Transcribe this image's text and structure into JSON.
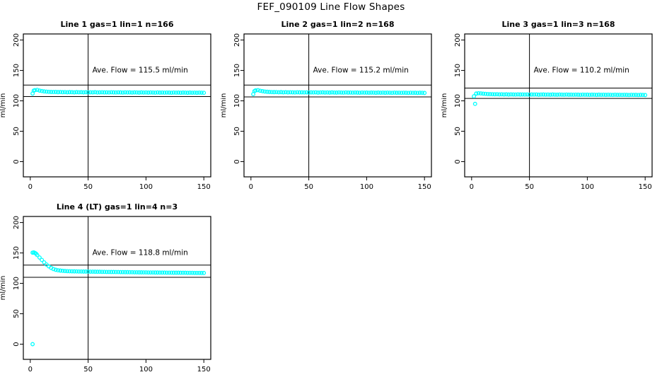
{
  "title": "FEF_090109  Line Flow Shapes",
  "colors": {
    "points": "#00FFFF",
    "axis": "#000000",
    "background": "#FFFFFF"
  },
  "axes": {
    "xlabel": "",
    "ylabel": "ml/min",
    "x_ticks": [
      0,
      50,
      100,
      150
    ],
    "y_ticks": [
      0,
      50,
      100,
      150,
      200
    ],
    "xlim": [
      0,
      150
    ],
    "ylim": [
      0,
      200
    ],
    "grid": false
  },
  "chart_data": [
    {
      "type": "scatter",
      "title": "Line 1 gas=1 lin=1 n=166",
      "annotation": "Ave. Flow =  115.5  ml/min",
      "ave_flow_ml_min": 115.5,
      "n": 166,
      "ref_line_v_x": 50,
      "ref_lines_h": [
        126,
        107
      ],
      "x_start": 2,
      "x_step": 2,
      "y": [
        112.0,
        117.6,
        118.0,
        116.9,
        116.1,
        115.5,
        115.1,
        114.8,
        114.6,
        114.5,
        114.6,
        114.3,
        114.5,
        114.2,
        114.4,
        114.1,
        114.3,
        114.2,
        114.0,
        114.3,
        114.1,
        114.2,
        114.0,
        114.2,
        113.9,
        114.1,
        114.0,
        114.2,
        113.8,
        114.0,
        114.1,
        113.9,
        114.0,
        113.8,
        114.1,
        113.9,
        113.8,
        114.0,
        113.9,
        113.7,
        114.0,
        113.8,
        113.9,
        113.7,
        113.9,
        113.8,
        113.6,
        113.9,
        113.7,
        113.8,
        113.6,
        113.8,
        113.7,
        113.5,
        113.8,
        113.6,
        113.7,
        113.5,
        113.7,
        113.6,
        113.4,
        113.7,
        113.5,
        113.6,
        113.4,
        113.6,
        113.5,
        113.3,
        113.6,
        113.4,
        113.5,
        113.3,
        113.5,
        113.4,
        113.2
      ],
      "extra_points": [
        [
          3,
          116.8
        ]
      ]
    },
    {
      "type": "scatter",
      "title": "Line 2 gas=1 lin=2 n=168",
      "annotation": "Ave. Flow =  115.2  ml/min",
      "ave_flow_ml_min": 115.2,
      "n": 168,
      "ref_line_v_x": 50,
      "ref_lines_h": [
        126,
        106.5
      ],
      "x_start": 2,
      "x_step": 2,
      "y": [
        111.0,
        117.1,
        117.6,
        116.6,
        115.9,
        115.3,
        114.9,
        114.6,
        114.4,
        114.3,
        114.4,
        114.1,
        114.3,
        114.0,
        114.2,
        113.9,
        114.1,
        114.0,
        113.8,
        114.1,
        113.9,
        114.0,
        113.8,
        114.0,
        113.7,
        113.9,
        113.8,
        114.0,
        113.6,
        113.8,
        113.9,
        113.7,
        113.8,
        113.6,
        113.9,
        113.7,
        113.6,
        113.8,
        113.7,
        113.5,
        113.8,
        113.6,
        113.7,
        113.5,
        113.7,
        113.6,
        113.4,
        113.7,
        113.5,
        113.6,
        113.4,
        113.6,
        113.5,
        113.3,
        113.6,
        113.4,
        113.5,
        113.3,
        113.5,
        113.4,
        113.2,
        113.5,
        113.3,
        113.4,
        113.2,
        113.4,
        113.3,
        113.1,
        113.4,
        113.2,
        113.3,
        113.1,
        113.3,
        113.2,
        113.0
      ],
      "extra_points": [
        [
          3,
          116.0
        ]
      ]
    },
    {
      "type": "scatter",
      "title": "Line 3 gas=1 lin=3 n=168",
      "annotation": "Ave. Flow =  110.2  ml/min",
      "ave_flow_ml_min": 110.2,
      "n": 168,
      "ref_line_v_x": 50,
      "ref_lines_h": [
        121,
        104
      ],
      "x_start": 2,
      "x_step": 2,
      "y": [
        107.5,
        112.1,
        112.5,
        112.2,
        111.8,
        111.5,
        111.2,
        111.0,
        110.9,
        110.8,
        110.9,
        110.6,
        110.8,
        110.5,
        110.7,
        110.4,
        110.6,
        110.5,
        110.3,
        110.6,
        110.4,
        110.5,
        110.3,
        110.5,
        110.2,
        110.4,
        110.3,
        110.5,
        110.1,
        110.3,
        110.4,
        110.2,
        110.3,
        110.1,
        110.4,
        110.2,
        110.1,
        110.3,
        110.2,
        110.0,
        110.3,
        110.1,
        110.2,
        110.0,
        110.2,
        110.1,
        109.9,
        110.2,
        110.0,
        110.1,
        109.9,
        110.1,
        110.0,
        109.8,
        110.1,
        109.9,
        110.0,
        109.8,
        110.0,
        109.9,
        109.7,
        110.0,
        109.8,
        109.9,
        109.7,
        109.9,
        109.8,
        109.6,
        109.9,
        109.7,
        109.8,
        109.6,
        109.8,
        109.7,
        109.5
      ],
      "extra_points": [
        [
          3,
          95.0
        ],
        [
          4,
          111.8
        ]
      ]
    },
    {
      "type": "scatter",
      "title": "Line 4 (LT) gas=1 lin=4 n=3",
      "annotation": "Ave. Flow =  118.8  ml/min",
      "ave_flow_ml_min": 118.8,
      "n": 3,
      "ref_line_v_x": 50,
      "ref_lines_h": [
        130,
        110
      ],
      "x_start": 2,
      "x_step": 2,
      "y": [
        150.5,
        150.0,
        146.5,
        142.5,
        138.5,
        134.5,
        131.0,
        128.0,
        125.5,
        123.5,
        122.3,
        121.5,
        121.0,
        120.6,
        120.3,
        120.1,
        119.9,
        119.8,
        119.7,
        119.6,
        119.5,
        119.5,
        119.4,
        119.4,
        119.3,
        119.2,
        119.2,
        119.1,
        119.0,
        119.0,
        118.9,
        118.9,
        118.8,
        118.8,
        118.7,
        118.7,
        118.6,
        118.6,
        118.5,
        118.5,
        118.4,
        118.4,
        118.3,
        118.3,
        118.2,
        118.2,
        118.1,
        118.1,
        118.0,
        118.0,
        117.9,
        117.9,
        117.9,
        117.8,
        117.8,
        117.7,
        117.7,
        117.7,
        117.6,
        117.6,
        117.6,
        117.5,
        117.5,
        117.5,
        117.4,
        117.4,
        117.4,
        117.3,
        117.3,
        117.3,
        117.2,
        117.2,
        117.2,
        117.1,
        117.1
      ],
      "extra_points": [
        [
          2,
          0.0
        ],
        [
          3,
          150.8
        ],
        [
          5,
          148.8
        ]
      ]
    }
  ]
}
